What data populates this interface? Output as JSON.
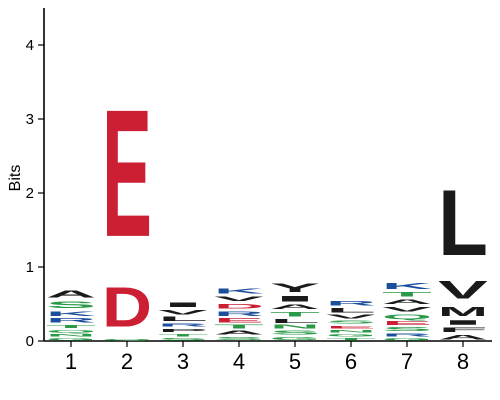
{
  "chart_data": {
    "type": "sequence-logo",
    "ylabel": "Bits",
    "ylim": [
      0,
      4.5
    ],
    "yticks": [
      "0",
      "1",
      "2",
      "3",
      "4"
    ],
    "positions": [
      "1",
      "2",
      "3",
      "4",
      "5",
      "6",
      "7",
      "8"
    ],
    "colors": {
      "acidic": "#cc1f33",
      "hydrophobic": "#1a1a1a",
      "basic": "#1b4f9c",
      "polar": "#2a9a48",
      "neutral": "#9b59b6",
      "polar_light": "#a8c8e8"
    },
    "stacks": [
      {
        "position": "1",
        "letters": [
          {
            "letter": "G",
            "bits": 0.05,
            "color": "#2a9a48"
          },
          {
            "letter": "N",
            "bits": 0.05,
            "color": "#2a9a48"
          },
          {
            "letter": "Q",
            "bits": 0.06,
            "color": "#2a9a48"
          },
          {
            "letter": "T",
            "bits": 0.07,
            "color": "#2a9a48"
          },
          {
            "letter": "R",
            "bits": 0.09,
            "color": "#1b4f9c"
          },
          {
            "letter": "K",
            "bits": 0.1,
            "color": "#1b4f9c"
          },
          {
            "letter": "S",
            "bits": 0.14,
            "color": "#2a9a48"
          },
          {
            "letter": "A",
            "bits": 0.15,
            "color": "#1a1a1a"
          }
        ]
      },
      {
        "position": "2",
        "letters": [
          {
            "letter": "Q",
            "bits": 0.03,
            "color": "#2a9a48"
          },
          {
            "letter": "D",
            "bits": 0.85,
            "color": "#cc1f33"
          },
          {
            "letter": "E",
            "bits": 2.75,
            "color": "#cc1f33"
          }
        ]
      },
      {
        "position": "3",
        "letters": [
          {
            "letter": "S",
            "bits": 0.05,
            "color": "#2a9a48"
          },
          {
            "letter": "T",
            "bits": 0.06,
            "color": "#2a9a48"
          },
          {
            "letter": "P",
            "bits": 0.07,
            "color": "#1a1a1a"
          },
          {
            "letter": "R",
            "bits": 0.07,
            "color": "#1b4f9c"
          },
          {
            "letter": "L",
            "bits": 0.09,
            "color": "#1a1a1a"
          },
          {
            "letter": "V",
            "bits": 0.1,
            "color": "#1a1a1a"
          },
          {
            "letter": "I",
            "bits": 0.1,
            "color": "#1a1a1a"
          }
        ]
      },
      {
        "position": "4",
        "letters": [
          {
            "letter": "S",
            "bits": 0.07,
            "color": "#2a9a48"
          },
          {
            "letter": "A",
            "bits": 0.08,
            "color": "#1a1a1a"
          },
          {
            "letter": "T",
            "bits": 0.08,
            "color": "#2a9a48"
          },
          {
            "letter": "E",
            "bits": 0.09,
            "color": "#cc1f33"
          },
          {
            "letter": "R",
            "bits": 0.1,
            "color": "#1b4f9c"
          },
          {
            "letter": "D",
            "bits": 0.1,
            "color": "#cc1f33"
          },
          {
            "letter": "V",
            "bits": 0.1,
            "color": "#1a1a1a"
          },
          {
            "letter": "K",
            "bits": 0.11,
            "color": "#1b4f9c"
          }
        ]
      },
      {
        "position": "5",
        "letters": [
          {
            "letter": "G",
            "bits": 0.07,
            "color": "#2a9a48"
          },
          {
            "letter": "S",
            "bits": 0.08,
            "color": "#2a9a48"
          },
          {
            "letter": "N",
            "bits": 0.08,
            "color": "#2a9a48"
          },
          {
            "letter": "L",
            "bits": 0.08,
            "color": "#1a1a1a"
          },
          {
            "letter": "T",
            "bits": 0.1,
            "color": "#2a9a48"
          },
          {
            "letter": "A",
            "bits": 0.1,
            "color": "#1a1a1a"
          },
          {
            "letter": "I",
            "bits": 0.12,
            "color": "#1a1a1a"
          },
          {
            "letter": "Y",
            "bits": 0.18,
            "color": "#1a1a1a"
          }
        ]
      },
      {
        "position": "6",
        "letters": [
          {
            "letter": "T",
            "bits": 0.05,
            "color": "#2a9a48"
          },
          {
            "letter": "G",
            "bits": 0.05,
            "color": "#2a9a48"
          },
          {
            "letter": "N",
            "bits": 0.06,
            "color": "#2a9a48"
          },
          {
            "letter": "E",
            "bits": 0.06,
            "color": "#cc1f33"
          },
          {
            "letter": "S",
            "bits": 0.07,
            "color": "#2a9a48"
          },
          {
            "letter": "V",
            "bits": 0.08,
            "color": "#1a1a1a"
          },
          {
            "letter": "L",
            "bits": 0.09,
            "color": "#1a1a1a"
          },
          {
            "letter": "R",
            "bits": 0.09,
            "color": "#1b4f9c"
          }
        ]
      },
      {
        "position": "7",
        "letters": [
          {
            "letter": "G",
            "bits": 0.05,
            "color": "#2a9a48"
          },
          {
            "letter": "R",
            "bits": 0.07,
            "color": "#1b4f9c"
          },
          {
            "letter": "S",
            "bits": 0.08,
            "color": "#2a9a48"
          },
          {
            "letter": "E",
            "bits": 0.08,
            "color": "#cc1f33"
          },
          {
            "letter": "Q",
            "bits": 0.1,
            "color": "#2a9a48"
          },
          {
            "letter": "V",
            "bits": 0.1,
            "color": "#1a1a1a"
          },
          {
            "letter": "A",
            "bits": 0.1,
            "color": "#1a1a1a"
          },
          {
            "letter": "T",
            "bits": 0.1,
            "color": "#2a9a48"
          },
          {
            "letter": "K",
            "bits": 0.13,
            "color": "#1b4f9c"
          }
        ]
      },
      {
        "position": "8",
        "letters": [
          {
            "letter": "A",
            "bits": 0.1,
            "color": "#1a1a1a"
          },
          {
            "letter": "F",
            "bits": 0.1,
            "color": "#1a1a1a"
          },
          {
            "letter": "I",
            "bits": 0.1,
            "color": "#1a1a1a"
          },
          {
            "letter": "M",
            "bits": 0.2,
            "color": "#1a1a1a"
          },
          {
            "letter": "V",
            "bits": 0.38,
            "color": "#1a1a1a"
          },
          {
            "letter": "L",
            "bits": 1.42,
            "color": "#1a1a1a"
          }
        ]
      }
    ]
  }
}
